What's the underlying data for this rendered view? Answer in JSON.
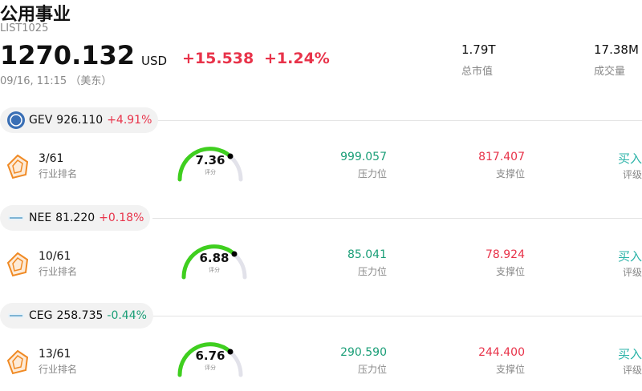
{
  "header": {
    "title": "公用事业",
    "code": "LIST1025",
    "price": "1270.132",
    "currency": "USD",
    "change": "+15.538",
    "change_pct": "+1.24%",
    "time": "09/16, 11:15 （美东）",
    "stats": [
      {
        "value": "1.79T",
        "label": "总市值"
      },
      {
        "value": "17.38M",
        "label": "成交量"
      }
    ]
  },
  "stocks": [
    {
      "ticker": "GEV",
      "price": "926.110",
      "change": "+4.91%",
      "rank": "3/61",
      "rank_label": "行业排名",
      "score": "7.36",
      "score_label": "评分",
      "resistance": "999.057",
      "resistance_label": "压力位",
      "support": "817.407",
      "support_label": "支撑位",
      "rating": "买入",
      "rating_label": "评级"
    },
    {
      "ticker": "NEE",
      "price": "81.220",
      "change": "+0.18%",
      "rank": "10/61",
      "rank_label": "行业排名",
      "score": "6.88",
      "score_label": "评分",
      "resistance": "85.041",
      "resistance_label": "压力位",
      "support": "78.924",
      "support_label": "支撑位",
      "rating": "买入",
      "rating_label": "评级"
    },
    {
      "ticker": "CEG",
      "price": "258.735",
      "change": "-0.44%",
      "rank": "13/61",
      "rank_label": "行业排名",
      "score": "6.76",
      "score_label": "评分",
      "resistance": "290.590",
      "resistance_label": "压力位",
      "support": "244.400",
      "support_label": "支撑位",
      "rating": "买入",
      "rating_label": "评级"
    }
  ]
}
